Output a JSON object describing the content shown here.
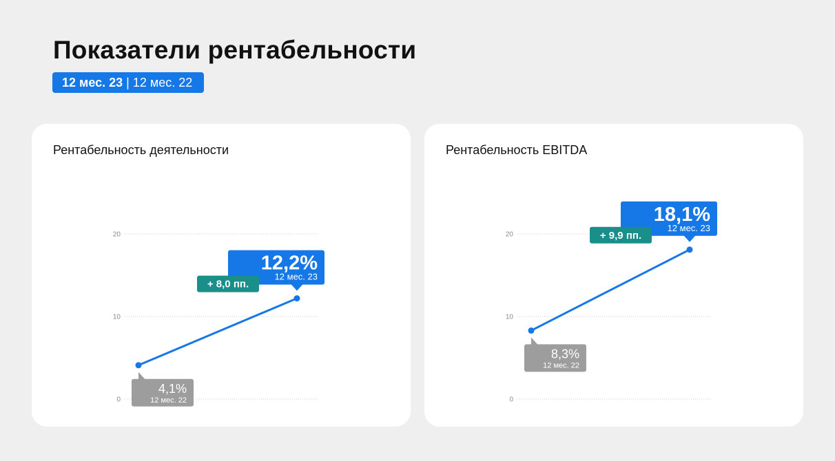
{
  "header": {
    "title": "Показатели рентабельности",
    "period_current": "12 мес. 23",
    "period_separator": "|",
    "period_previous": "12 мес. 22"
  },
  "colors": {
    "accent_blue": "#1677e6",
    "delta_teal": "#1a8f8a",
    "prev_gray": "#9d9d9d",
    "gridline": "#cfcfcf"
  },
  "chart_data": [
    {
      "type": "line",
      "title": "Рентабельность деятельности",
      "ylim": [
        0,
        20
      ],
      "yticks": [
        "0",
        "10",
        "20"
      ],
      "grid": true,
      "points": [
        {
          "value": 4.1,
          "value_label": "4,1%",
          "period_label": "12 мес. 22",
          "style": "previous"
        },
        {
          "value": 12.2,
          "value_label": "12,2%",
          "period_label": "12 мес. 23",
          "style": "current"
        }
      ],
      "delta_label": "+ 8,0 пп."
    },
    {
      "type": "line",
      "title": "Рентабельность EBITDA",
      "ylim": [
        0,
        20
      ],
      "yticks": [
        "0",
        "10",
        "20"
      ],
      "grid": true,
      "points": [
        {
          "value": 8.3,
          "value_label": "8,3%",
          "period_label": "12 мес. 22",
          "style": "previous"
        },
        {
          "value": 18.1,
          "value_label": "18,1%",
          "period_label": "12 мес. 23",
          "style": "current"
        }
      ],
      "delta_label": "+ 9,9 пп."
    }
  ]
}
